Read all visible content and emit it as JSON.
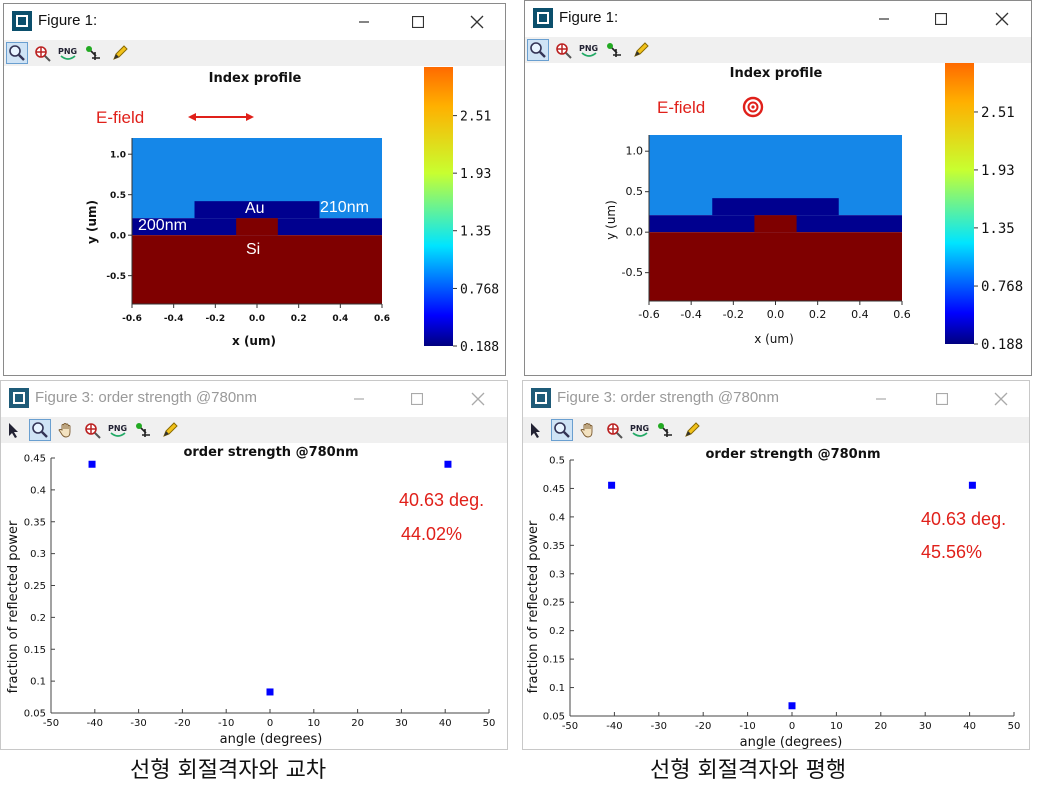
{
  "windows": [
    {
      "title": "Figure 1:",
      "plot": {
        "title": "Index profile",
        "xlabel": "x (um)",
        "ylabel": "y (um)",
        "xticks": [
          "-0.6",
          "-0.4",
          "-0.2",
          "0.0",
          "0.2",
          "0.4",
          "0.6"
        ],
        "yticks": [
          "1.0",
          "0.5",
          "0.0",
          "-0.5"
        ],
        "colorbar_ticks": [
          "2.51",
          "1.93",
          "1.35",
          "0.768",
          "0.188"
        ],
        "annotations": {
          "efield": "E-field",
          "au": "Au",
          "si": "Si",
          "w210": "210nm",
          "w200": "200nm"
        }
      }
    },
    {
      "title": "Figure 1:",
      "plot": {
        "title": "Index profile",
        "xlabel": "x (um)",
        "ylabel": "y (um)",
        "xticks": [
          "-0.6",
          "-0.4",
          "-0.2",
          "0.0",
          "0.2",
          "0.4",
          "0.6"
        ],
        "yticks": [
          "1.0",
          "0.5",
          "0.0",
          "-0.5"
        ],
        "colorbar_ticks": [
          "2.51",
          "1.93",
          "1.35",
          "0.768",
          "0.188"
        ],
        "annotations": {
          "efield": "E-field"
        }
      }
    },
    {
      "title": "Figure 3: order strength @780nm",
      "plot": {
        "title": "order strength @780nm",
        "xlabel": "angle (degrees)",
        "ylabel": "fraction of reflected power",
        "xticks": [
          "-50",
          "-40",
          "-30",
          "-20",
          "-10",
          "0",
          "10",
          "20",
          "30",
          "40",
          "50"
        ],
        "yticks": [
          "0.45",
          "0.4",
          "0.35",
          "0.3",
          "0.25",
          "0.2",
          "0.15",
          "0.1",
          "0.05"
        ],
        "annotations": {
          "angle": "40.63 deg.",
          "percent": "44.02%"
        }
      }
    },
    {
      "title": "Figure 3: order strength @780nm",
      "plot": {
        "title": "order strength @780nm",
        "xlabel": "angle (degrees)",
        "ylabel": "fraction of reflected power",
        "xticks": [
          "-50",
          "-40",
          "-30",
          "-20",
          "-10",
          "0",
          "10",
          "20",
          "30",
          "40",
          "50"
        ],
        "yticks": [
          "0.5",
          "0.45",
          "0.4",
          "0.35",
          "0.3",
          "0.25",
          "0.2",
          "0.15",
          "0.1",
          "0.05"
        ],
        "annotations": {
          "angle": "40.63 deg.",
          "percent": "45.56%"
        }
      }
    }
  ],
  "chart_data": [
    {
      "type": "heatmap",
      "title": "Index profile",
      "xlabel": "x (um)",
      "ylabel": "y (um)",
      "xlim": [
        -0.6,
        0.6
      ],
      "ylim": [
        -0.85,
        1.2
      ],
      "colorbar": {
        "range": [
          0.188,
          3.0
        ],
        "ticks": [
          2.51,
          1.93,
          1.35,
          0.768,
          0.188
        ],
        "colormap": "jet"
      },
      "regions": [
        {
          "material": "Si",
          "x": [
            -0.6,
            0.6
          ],
          "y": [
            -0.85,
            0.0
          ],
          "color": "#7f0000"
        },
        {
          "material": "Si ridge",
          "x": [
            -0.1,
            0.1
          ],
          "y": [
            0.0,
            0.21
          ],
          "color": "#7f0000"
        },
        {
          "material": "Au",
          "x": [
            -0.6,
            0.6
          ],
          "y": [
            0.0,
            0.21
          ],
          "color": "#00008f"
        },
        {
          "material": "Au",
          "x": [
            -0.3,
            0.3
          ],
          "y": [
            0.21,
            0.42
          ],
          "color": "#00008f"
        },
        {
          "material": "ambient",
          "x": [
            -0.6,
            0.6
          ],
          "y": [
            0.21,
            1.2
          ],
          "color": "#1587e8"
        }
      ]
    },
    {
      "type": "heatmap",
      "title": "Index profile",
      "xlabel": "x (um)",
      "ylabel": "y (um)",
      "xlim": [
        -0.6,
        0.6
      ],
      "ylim": [
        -0.85,
        1.2
      ],
      "colorbar": {
        "range": [
          0.188,
          3.0
        ],
        "ticks": [
          2.51,
          1.93,
          1.35,
          0.768,
          0.188
        ],
        "colormap": "jet"
      },
      "regions": [
        {
          "material": "Si",
          "x": [
            -0.6,
            0.6
          ],
          "y": [
            -0.85,
            0.0
          ],
          "color": "#7f0000"
        },
        {
          "material": "Si ridge",
          "x": [
            -0.1,
            0.1
          ],
          "y": [
            0.0,
            0.21
          ],
          "color": "#7f0000"
        },
        {
          "material": "Au",
          "x": [
            -0.6,
            0.6
          ],
          "y": [
            0.0,
            0.21
          ],
          "color": "#00008f"
        },
        {
          "material": "Au",
          "x": [
            -0.3,
            0.3
          ],
          "y": [
            0.21,
            0.42
          ],
          "color": "#00008f"
        },
        {
          "material": "ambient",
          "x": [
            -0.6,
            0.6
          ],
          "y": [
            0.21,
            1.2
          ],
          "color": "#1587e8"
        }
      ]
    },
    {
      "type": "scatter",
      "title": "order strength @780nm",
      "xlabel": "angle (degrees)",
      "ylabel": "fraction of reflected power",
      "xlim": [
        -50,
        50
      ],
      "ylim": [
        0.05,
        0.45
      ],
      "points": [
        {
          "x": -40.63,
          "y": 0.4402
        },
        {
          "x": 0,
          "y": 0.083
        },
        {
          "x": 40.63,
          "y": 0.4402
        }
      ],
      "color": "#0000ff"
    },
    {
      "type": "scatter",
      "title": "order strength @780nm",
      "xlabel": "angle (degrees)",
      "ylabel": "fraction of reflected power",
      "xlim": [
        -50,
        50
      ],
      "ylim": [
        0.05,
        0.5
      ],
      "points": [
        {
          "x": -40.63,
          "y": 0.4556
        },
        {
          "x": 0,
          "y": 0.068
        },
        {
          "x": 40.63,
          "y": 0.4556
        }
      ],
      "color": "#0000ff"
    }
  ],
  "captions": {
    "left": "선형 회절격자와 교차",
    "right": "선형 회절격자와 평행"
  },
  "colors": {
    "annotation": "#e0201a",
    "marker": "#0000ff"
  }
}
